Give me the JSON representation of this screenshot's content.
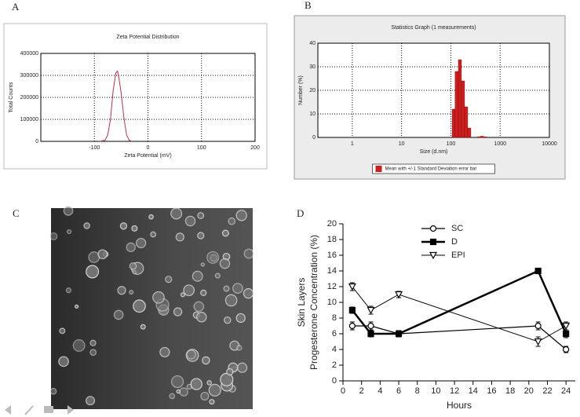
{
  "panels": [
    "A",
    "B",
    "C",
    "D"
  ],
  "chart_data": [
    {
      "type": "line",
      "title": "Zeta Potential Distribution",
      "xlabel": "Zeta Potential (mV)",
      "ylabel": "Total Counts",
      "x": [
        -90,
        -80,
        -75,
        -70,
        -65,
        -60,
        -57,
        -55,
        -50,
        -45,
        -40,
        -35,
        -30
      ],
      "xlim": [
        -200,
        200
      ],
      "xticks": [
        -100,
        0,
        100,
        200
      ],
      "ylim": [
        0,
        400000
      ],
      "yticks": [
        0,
        100000,
        200000,
        300000,
        400000
      ],
      "grid": true,
      "series": [
        {
          "color": "#c0304a",
          "line_width": 1,
          "values": [
            0,
            5000,
            30000,
            100000,
            230000,
            310000,
            320000,
            300000,
            220000,
            110000,
            30000,
            5000,
            0
          ]
        }
      ]
    },
    {
      "type": "histogram",
      "title": "Statistics Graph (1 measurements)",
      "xlabel": "Size (d.nm)",
      "ylabel": "Number (%)",
      "xscale": "log",
      "xlim": [
        0.2,
        10000
      ],
      "xticks": [
        1,
        10,
        100,
        1000,
        10000
      ],
      "ylim": [
        0,
        40
      ],
      "yticks": [
        0,
        10,
        20,
        30,
        40
      ],
      "grid": true,
      "bins": [
        106,
        122,
        142,
        164,
        190,
        220,
        255,
        295,
        342,
        396,
        459,
        531
      ],
      "values": [
        12,
        28,
        33,
        24,
        13,
        4,
        0,
        0,
        0.3,
        0.5,
        0.3
      ],
      "color": "#cc1f1f",
      "legend": "Mean with +/-1 Standard Deviation error bar",
      "legend_loc": "bottom"
    },
    {
      "type": "line",
      "xlabel": "Hours",
      "ylabel": [
        "Skin Layers",
        "Progesterone Concentration (%)"
      ],
      "x": [
        1,
        3,
        6,
        21,
        24
      ],
      "xlim": [
        0,
        25
      ],
      "xticks": [
        0,
        2,
        4,
        6,
        8,
        10,
        12,
        14,
        16,
        18,
        20,
        22,
        24
      ],
      "ylim": [
        0,
        20
      ],
      "yticks": [
        0,
        2,
        4,
        6,
        8,
        10,
        12,
        14,
        16,
        18,
        20
      ],
      "grid": false,
      "legend_loc": "upper left",
      "series": [
        {
          "name": "SC",
          "color": "#000000",
          "marker": "open-circle",
          "line_width": 1.2,
          "values": [
            7,
            7,
            6,
            7,
            4
          ],
          "errors": [
            0.5,
            0.5,
            0.4,
            0.5,
            0.4
          ]
        },
        {
          "name": "D",
          "color": "#000000",
          "marker": "filled-square",
          "line_width": 2.5,
          "values": [
            9,
            6,
            6,
            14,
            6
          ],
          "errors": [
            0.4,
            0.4,
            0.4,
            0.3,
            0.5
          ]
        },
        {
          "name": "EPI",
          "color": "#000000",
          "marker": "open-triangle-down",
          "line_width": 1,
          "values": [
            12,
            9,
            11,
            5,
            7
          ],
          "errors": [
            0.5,
            0.5,
            0.4,
            0.6,
            0.5
          ]
        }
      ]
    }
  ]
}
